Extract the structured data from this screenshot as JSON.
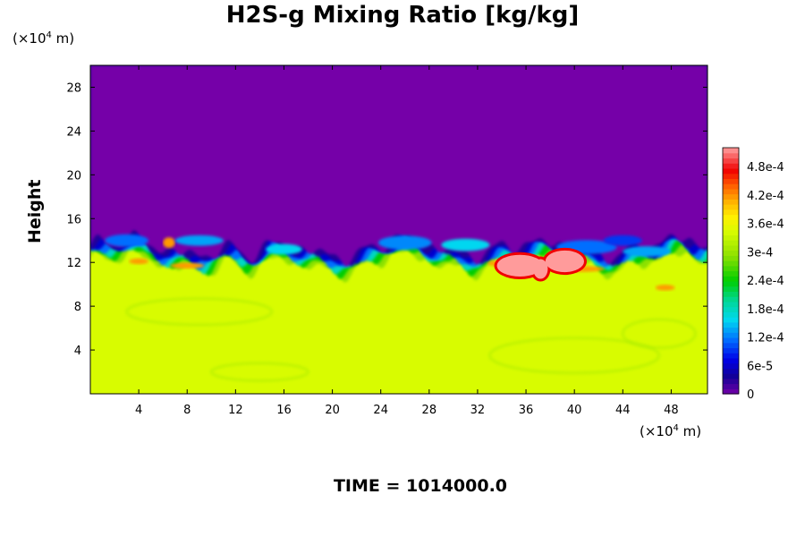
{
  "chart_data": {
    "type": "heatmap",
    "title": "H2S-g Mixing Ratio [kg/kg]",
    "ylabel": "Height",
    "x_unit": "(×10⁴ m)",
    "y_unit": "(×10⁴ m)",
    "footer": "TIME = 1014000.0",
    "xlim": [
      0,
      51
    ],
    "ylim": [
      0,
      30
    ],
    "x_ticks": [
      "4",
      "8",
      "12",
      "16",
      "20",
      "24",
      "28",
      "32",
      "36",
      "40",
      "44",
      "48"
    ],
    "y_ticks": [
      "4",
      "8",
      "12",
      "16",
      "20",
      "24",
      "28"
    ],
    "colorbar": {
      "range": [
        0,
        0.00052
      ],
      "labels": [
        "0",
        "6e-5",
        "1.2e-4",
        "1.8e-4",
        "2.4e-4",
        "3e-4",
        "3.6e-4",
        "4.2e-4",
        "4.8e-4"
      ]
    },
    "colors": {
      "upper_layer": "#7400a8",
      "lower_layer": "#d8fc00",
      "hotspot": "#ff9b9b"
    }
  }
}
